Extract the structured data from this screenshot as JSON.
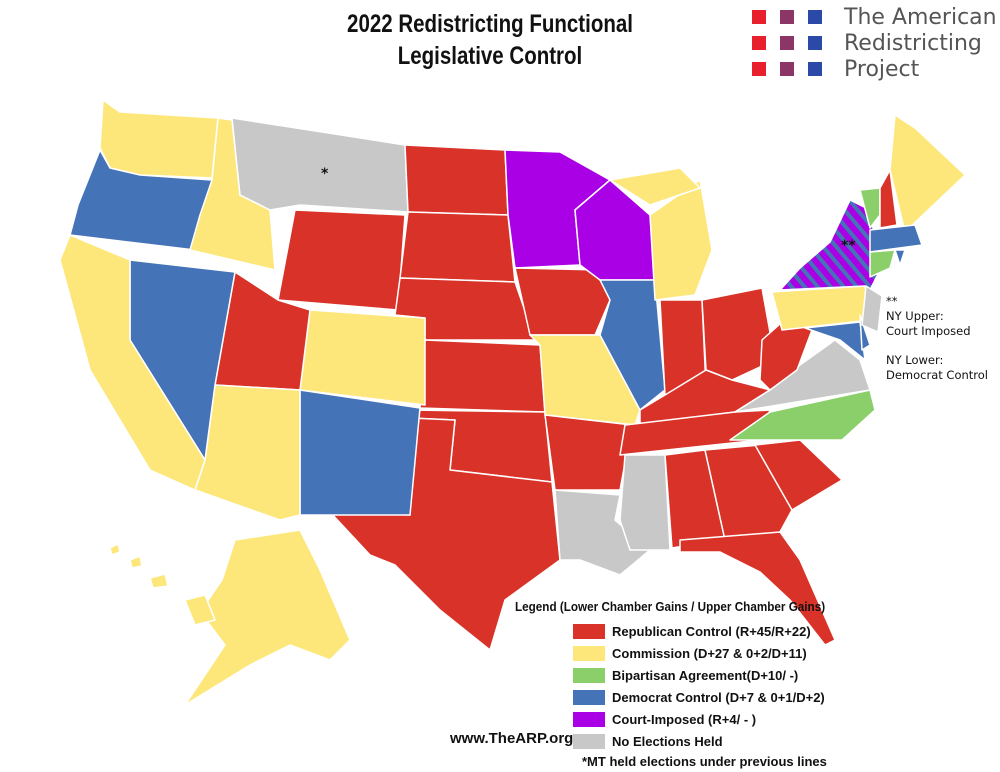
{
  "title_line1": "2022 Redistricting Functional",
  "title_line2": "Legislative Control",
  "logo": {
    "line1": "The American",
    "line2": "Redistricting",
    "line3": "Project",
    "square_colors": [
      "#e8202e",
      "#8c3567",
      "#2b4aa8"
    ]
  },
  "categories": {
    "republican": {
      "label": "Republican Control (R+45/R+22)",
      "color": "#d93228"
    },
    "commission": {
      "label": "Commission (D+27 & 0+2/D+11)",
      "color": "#fde77a"
    },
    "bipartisan": {
      "label": "Bipartisan Agreement(D+10/ -)",
      "color": "#8bcf6a"
    },
    "democrat": {
      "label": "Democrat Control (D+7 & 0+1/D+2)",
      "color": "#4573b8"
    },
    "court": {
      "label": "Court-Imposed (R+4/ - )",
      "color": "#aa00e6"
    },
    "none": {
      "label": "No Elections Held",
      "color": "#c8c8c8"
    }
  },
  "legend": {
    "heading": "Legend (Lower Chamber Gains / Upper Chamber Gains)",
    "order": [
      "republican",
      "commission",
      "bipartisan",
      "democrat",
      "court",
      "none"
    ],
    "footnote": "*MT held elections under previous lines"
  },
  "website": "www.TheARP.org",
  "ny_note": {
    "marker": "**",
    "upper_label": "NY Upper:",
    "upper_value": "Court Imposed",
    "lower_label": "NY Lower:",
    "lower_value": "Democrat Control"
  },
  "mt_marker": "*",
  "ny_marker": "**",
  "state_control": {
    "WA": "commission",
    "OR": "democrat",
    "CA": "commission",
    "ID": "commission",
    "NV": "democrat",
    "MT": "none",
    "WY": "republican",
    "UT": "republican",
    "AZ": "commission",
    "CO": "commission",
    "NM": "democrat",
    "ND": "republican",
    "SD": "republican",
    "NE": "republican",
    "KS": "republican",
    "OK": "republican",
    "TX": "republican",
    "MN": "court",
    "IA": "republican",
    "MO": "commission",
    "AR": "republican",
    "LA": "none",
    "WI": "court",
    "IL": "democrat",
    "MI": "commission",
    "IN": "republican",
    "OH": "republican",
    "KY": "republican",
    "TN": "republican",
    "MS": "none",
    "AL": "republican",
    "GA": "republican",
    "FL": "republican",
    "SC": "republican",
    "NC": "bipartisan",
    "VA": "none",
    "WV": "republican",
    "PA": "commission",
    "NY": "court+democrat",
    "MD": "democrat",
    "DE": "democrat",
    "NJ": "none",
    "VT": "bipartisan",
    "NH": "republican",
    "ME": "commission",
    "MA": "democrat",
    "CT": "bipartisan",
    "RI": "democrat",
    "AK": "commission",
    "HI": "commission"
  }
}
